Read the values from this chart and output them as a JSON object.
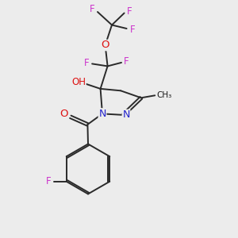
{
  "bg_color": "#ececec",
  "atom_colors": {
    "C": "#1a1a1a",
    "N": "#2222cc",
    "O": "#dd1111",
    "F": "#cc33cc",
    "H": "#555555"
  },
  "bond_color": "#2a2a2a",
  "figsize": [
    3.0,
    3.0
  ],
  "dpi": 100
}
